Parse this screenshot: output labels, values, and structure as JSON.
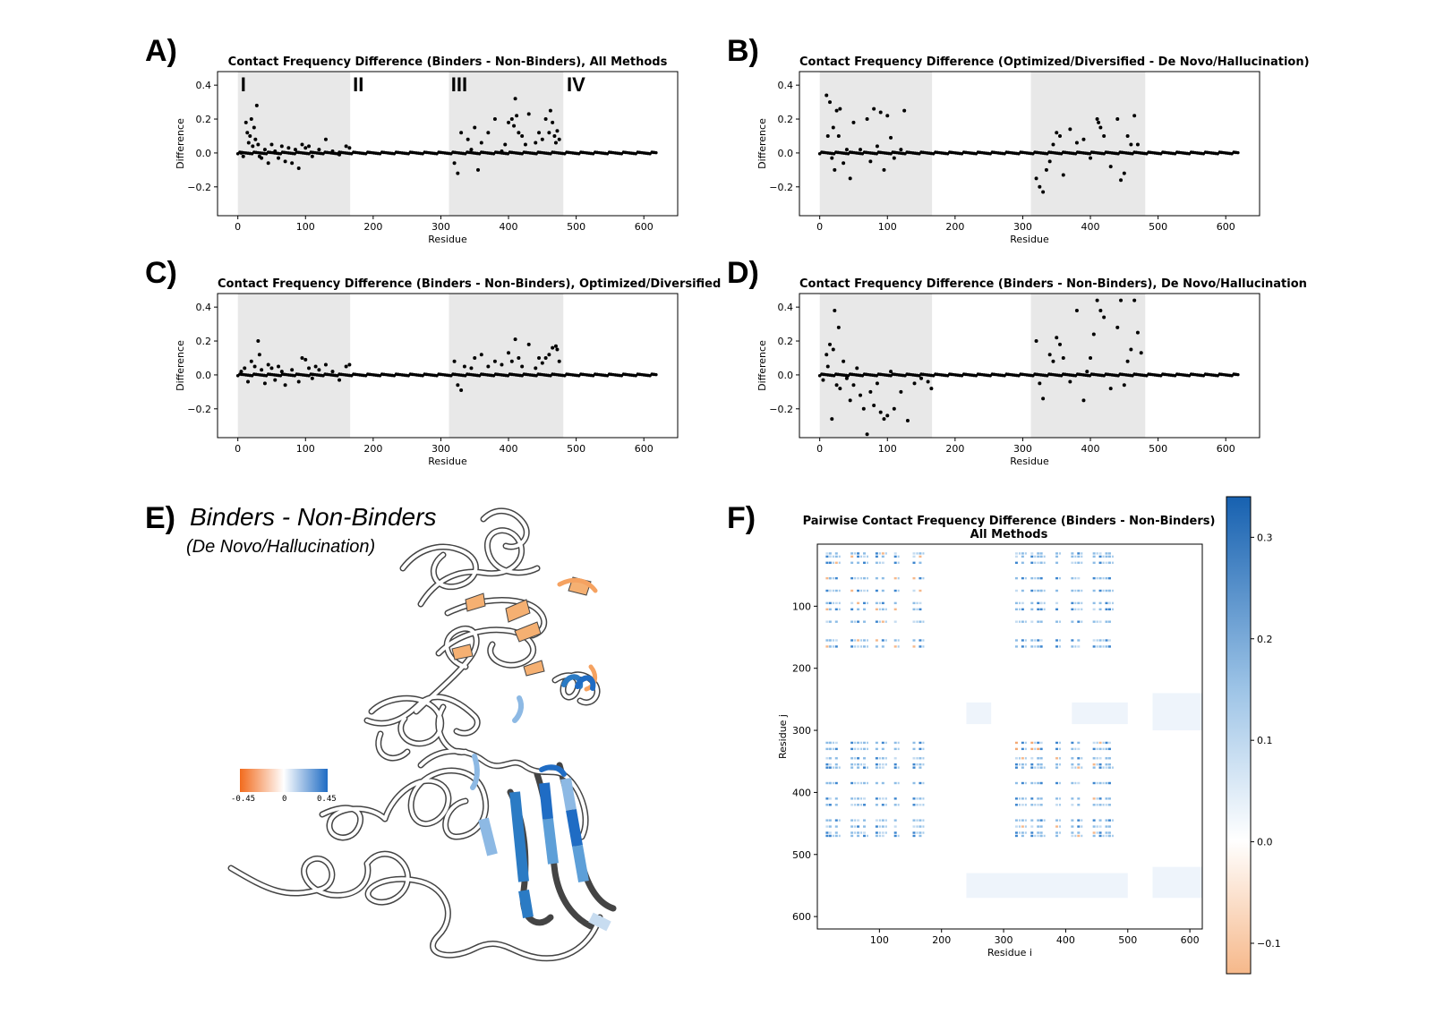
{
  "panels": {
    "a": {
      "letter": "A)",
      "title": "Contact Frequency Difference (Binders - Non-Binders), All Methods",
      "ylabel": "Difference",
      "xlabel": "Residue",
      "domains": [
        "I",
        "II",
        "III",
        "IV"
      ]
    },
    "b": {
      "letter": "B)",
      "title": "Contact Frequency Difference (Optimized/Diversified - De Novo/Hallucination)",
      "ylabel": "Difference",
      "xlabel": "Residue"
    },
    "c": {
      "letter": "C)",
      "title": "Contact Frequency Difference (Binders - Non-Binders), Optimized/Diversified",
      "ylabel": "Difference",
      "xlabel": "Residue"
    },
    "d": {
      "letter": "D)",
      "title": "Contact Frequency Difference (Binders - Non-Binders), De Novo/Hallucination",
      "ylabel": "Difference",
      "xlabel": "Residue"
    },
    "e": {
      "letter": "E)",
      "title": "Binders - Non-Binders",
      "subtitle": "(De Novo/Hallucination)",
      "scale_min": "-0.45",
      "scale_mid": "0",
      "scale_max": "0.45"
    },
    "f": {
      "letter": "F)",
      "title_line1": "Pairwise Contact Frequency Difference (Binders - Non-Binders)",
      "title_line2": "All Methods",
      "xlabel": "Residue i",
      "ylabel": "Residue j"
    }
  },
  "colors": {
    "shade": "#e8e8e8",
    "point": "#000000",
    "negative": "#f5a261",
    "positive": "#2b7bc4",
    "ribbon": "#ffffff",
    "outline": "#444444"
  },
  "chart_data": [
    {
      "id": "A",
      "type": "scatter",
      "title": "Contact Frequency Difference (Binders - Non-Binders), All Methods",
      "xlabel": "Residue",
      "ylabel": "Difference",
      "xlim": [
        -30,
        650
      ],
      "ylim": [
        -0.37,
        0.48
      ],
      "xticks": [
        0,
        100,
        200,
        300,
        400,
        500,
        600
      ],
      "yticks": [
        -0.2,
        0.0,
        0.2,
        0.4
      ],
      "shaded_ranges": [
        [
          0,
          166
        ],
        [
          312,
          481
        ]
      ],
      "domain_labels": [
        {
          "text": "I",
          "x": 4
        },
        {
          "text": "II",
          "x": 170
        },
        {
          "text": "III",
          "x": 315
        },
        {
          "text": "IV",
          "x": 486
        }
      ],
      "x": [
        5,
        8,
        12,
        14,
        16,
        18,
        20,
        22,
        24,
        26,
        28,
        30,
        32,
        35,
        40,
        45,
        50,
        55,
        60,
        65,
        70,
        75,
        80,
        85,
        90,
        95,
        100,
        105,
        110,
        120,
        130,
        140,
        150,
        160,
        165,
        320,
        325,
        330,
        340,
        345,
        350,
        355,
        360,
        370,
        380,
        390,
        395,
        400,
        405,
        408,
        410,
        412,
        415,
        420,
        425,
        430,
        440,
        445,
        450,
        455,
        460,
        462,
        465,
        468,
        470,
        472,
        475
      ],
      "y": [
        0.0,
        -0.02,
        0.18,
        0.12,
        0.06,
        0.1,
        0.2,
        0.04,
        0.15,
        0.08,
        0.28,
        0.05,
        -0.02,
        -0.03,
        0.02,
        -0.06,
        0.05,
        0.01,
        -0.03,
        0.04,
        -0.05,
        0.03,
        -0.06,
        0.02,
        -0.09,
        0.05,
        0.03,
        0.04,
        -0.02,
        0.02,
        0.08,
        0.01,
        -0.01,
        0.04,
        0.03,
        -0.06,
        -0.12,
        0.12,
        0.08,
        0.02,
        0.15,
        -0.1,
        0.06,
        0.12,
        0.2,
        0.01,
        0.05,
        0.18,
        0.2,
        0.16,
        0.32,
        0.22,
        0.12,
        0.1,
        0.05,
        0.23,
        0.06,
        0.12,
        0.08,
        0.2,
        0.12,
        0.25,
        0.18,
        0.1,
        0.06,
        0.13,
        0.08
      ]
    },
    {
      "id": "B",
      "type": "scatter",
      "title": "Contact Frequency Difference (Optimized/Diversified - De Novo/Hallucination)",
      "xlabel": "Residue",
      "ylabel": "Difference",
      "xlim": [
        -30,
        650
      ],
      "ylim": [
        -0.37,
        0.48
      ],
      "xticks": [
        0,
        100,
        200,
        300,
        400,
        500,
        600
      ],
      "yticks": [
        -0.2,
        0.0,
        0.2,
        0.4
      ],
      "shaded_ranges": [
        [
          0,
          166
        ],
        [
          312,
          481
        ]
      ],
      "x": [
        10,
        12,
        15,
        18,
        20,
        22,
        25,
        28,
        30,
        35,
        40,
        45,
        50,
        60,
        70,
        75,
        80,
        85,
        90,
        95,
        100,
        105,
        110,
        120,
        125,
        320,
        325,
        330,
        335,
        340,
        345,
        350,
        355,
        360,
        370,
        380,
        390,
        400,
        410,
        412,
        415,
        420,
        430,
        440,
        445,
        450,
        455,
        460,
        465,
        470
      ],
      "y": [
        0.34,
        0.1,
        0.3,
        -0.03,
        0.15,
        -0.1,
        0.25,
        0.1,
        0.26,
        -0.06,
        0.02,
        -0.15,
        0.18,
        0.02,
        0.2,
        -0.05,
        0.26,
        0.04,
        0.24,
        -0.1,
        0.22,
        0.09,
        -0.03,
        0.02,
        0.25,
        -0.15,
        -0.2,
        -0.23,
        -0.1,
        -0.05,
        0.05,
        0.12,
        0.1,
        -0.13,
        0.14,
        0.06,
        0.08,
        -0.03,
        0.2,
        0.18,
        0.15,
        0.1,
        -0.08,
        0.2,
        -0.16,
        -0.12,
        0.1,
        0.05,
        0.22,
        0.05
      ]
    },
    {
      "id": "C",
      "type": "scatter",
      "title": "Contact Frequency Difference (Binders - Non-Binders), Optimized/Diversified",
      "xlabel": "Residue",
      "ylabel": "Difference",
      "xlim": [
        -30,
        650
      ],
      "ylim": [
        -0.37,
        0.48
      ],
      "xticks": [
        0,
        100,
        200,
        300,
        400,
        500,
        600
      ],
      "yticks": [
        -0.2,
        0.0,
        0.2,
        0.4
      ],
      "shaded_ranges": [
        [
          0,
          166
        ],
        [
          312,
          481
        ]
      ],
      "x": [
        5,
        10,
        15,
        20,
        25,
        30,
        32,
        35,
        40,
        45,
        50,
        55,
        60,
        65,
        70,
        80,
        90,
        95,
        100,
        105,
        110,
        115,
        120,
        130,
        140,
        150,
        160,
        165,
        320,
        325,
        330,
        335,
        345,
        350,
        360,
        370,
        380,
        390,
        400,
        405,
        410,
        415,
        420,
        430,
        440,
        445,
        450,
        455,
        460,
        465,
        470,
        472,
        475
      ],
      "y": [
        0.02,
        0.04,
        -0.04,
        0.08,
        0.05,
        0.2,
        0.12,
        0.03,
        -0.05,
        0.06,
        0.04,
        -0.03,
        0.05,
        0.02,
        -0.06,
        0.03,
        -0.04,
        0.1,
        0.09,
        0.04,
        -0.02,
        0.05,
        0.03,
        0.06,
        0.02,
        -0.03,
        0.05,
        0.06,
        0.08,
        -0.06,
        -0.09,
        0.05,
        0.04,
        0.1,
        0.12,
        0.05,
        0.08,
        0.06,
        0.13,
        0.08,
        0.21,
        0.1,
        0.05,
        0.18,
        0.04,
        0.1,
        0.07,
        0.1,
        0.12,
        0.16,
        0.17,
        0.15,
        0.08
      ]
    },
    {
      "id": "D",
      "type": "scatter",
      "title": "Contact Frequency Difference (Binders - Non-Binders), De Novo/Hallucination",
      "xlabel": "Residue",
      "ylabel": "Difference",
      "xlim": [
        -30,
        650
      ],
      "ylim": [
        -0.37,
        0.48
      ],
      "xticks": [
        0,
        100,
        200,
        300,
        400,
        500,
        600
      ],
      "yticks": [
        -0.2,
        0.0,
        0.2,
        0.4
      ],
      "shaded_ranges": [
        [
          0,
          166
        ],
        [
          312,
          481
        ]
      ],
      "x": [
        5,
        10,
        12,
        15,
        18,
        20,
        22,
        25,
        28,
        30,
        35,
        40,
        45,
        50,
        55,
        60,
        65,
        70,
        75,
        80,
        85,
        90,
        95,
        100,
        105,
        110,
        120,
        130,
        140,
        150,
        160,
        165,
        320,
        325,
        330,
        340,
        345,
        350,
        355,
        360,
        370,
        380,
        390,
        395,
        400,
        405,
        410,
        415,
        420,
        430,
        440,
        445,
        450,
        455,
        460,
        465,
        470,
        475
      ],
      "y": [
        -0.03,
        0.12,
        0.05,
        0.18,
        -0.26,
        0.15,
        0.38,
        -0.06,
        0.28,
        -0.08,
        0.08,
        -0.02,
        -0.15,
        -0.06,
        0.04,
        -0.12,
        -0.2,
        -0.35,
        -0.1,
        -0.18,
        -0.05,
        -0.22,
        -0.26,
        -0.24,
        0.02,
        -0.2,
        -0.1,
        -0.27,
        -0.05,
        -0.02,
        -0.04,
        -0.08,
        0.2,
        -0.05,
        -0.14,
        0.12,
        0.08,
        0.22,
        0.18,
        0.1,
        -0.04,
        0.38,
        -0.15,
        0.02,
        0.1,
        0.24,
        0.44,
        0.38,
        0.34,
        -0.08,
        0.28,
        0.44,
        -0.06,
        0.08,
        0.15,
        0.44,
        0.25,
        0.13
      ]
    },
    {
      "id": "F",
      "type": "heatmap",
      "title": "Pairwise Contact Frequency Difference (Binders - Non-Binders)\nAll Methods",
      "xlabel": "Residue i",
      "ylabel": "Residue j",
      "xlim": [
        0,
        620
      ],
      "ylim": [
        0,
        620
      ],
      "xticks": [
        100,
        200,
        300,
        400,
        500,
        600
      ],
      "yticks": [
        100,
        200,
        300,
        400,
        500,
        600
      ],
      "colorbar": {
        "min": -0.13,
        "max": 0.34,
        "ticks": [
          -0.1,
          0.0,
          0.1,
          0.2,
          0.3
        ]
      },
      "hot_rows": [
        15,
        20,
        30,
        55,
        75,
        95,
        105,
        125,
        155,
        165,
        320,
        330,
        345,
        355,
        360,
        385,
        410,
        420,
        445,
        455,
        465,
        470
      ],
      "hot_cols": [
        15,
        20,
        30,
        55,
        65,
        75,
        95,
        105,
        125,
        155,
        165,
        320,
        330,
        345,
        355,
        360,
        385,
        410,
        420,
        445,
        455,
        465,
        470
      ]
    }
  ]
}
